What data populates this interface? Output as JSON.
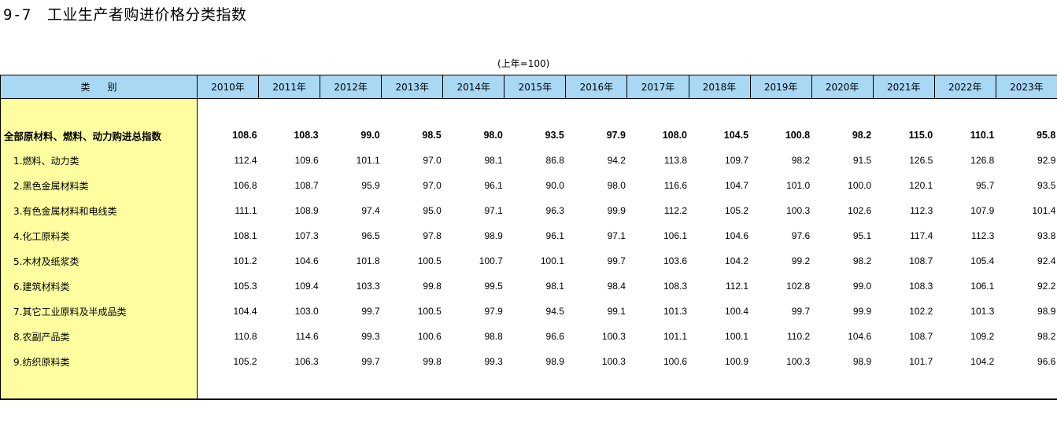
{
  "title": {
    "number": "9-7",
    "text": "工业生产者购进价格分类指数"
  },
  "unit_note": "(上年=100)",
  "table": {
    "category_header": "类别",
    "years": [
      "2010年",
      "2011年",
      "2012年",
      "2013年",
      "2014年",
      "2015年",
      "2016年",
      "2017年",
      "2018年",
      "2019年",
      "2020年",
      "2021年",
      "2022年",
      "2023年"
    ],
    "rows": [
      {
        "label": "全部原材料、燃料、动力购进总指数",
        "bold": true,
        "values": [
          "108.6",
          "108.3",
          "99.0",
          "98.5",
          "98.0",
          "93.5",
          "97.9",
          "108.0",
          "104.5",
          "100.8",
          "98.2",
          "115.0",
          "110.1",
          "95.8"
        ]
      },
      {
        "label": "1.燃料、动力类",
        "bold": false,
        "values": [
          "112.4",
          "109.6",
          "101.1",
          "97.0",
          "98.1",
          "86.8",
          "94.2",
          "113.8",
          "109.7",
          "98.2",
          "91.5",
          "126.5",
          "126.8",
          "92.9"
        ]
      },
      {
        "label": "2.黑色金属材料类",
        "bold": false,
        "values": [
          "106.8",
          "108.7",
          "95.9",
          "97.0",
          "96.1",
          "90.0",
          "98.0",
          "116.6",
          "104.7",
          "101.0",
          "100.0",
          "120.1",
          "95.7",
          "93.5"
        ]
      },
      {
        "label": "3.有色金属材料和电线类",
        "bold": false,
        "values": [
          "111.1",
          "108.9",
          "97.4",
          "95.0",
          "97.1",
          "96.3",
          "99.9",
          "112.2",
          "105.2",
          "100.3",
          "102.6",
          "112.3",
          "107.9",
          "101.4"
        ]
      },
      {
        "label": "4.化工原料类",
        "bold": false,
        "values": [
          "108.1",
          "107.3",
          "96.5",
          "97.8",
          "98.9",
          "96.1",
          "97.1",
          "106.1",
          "104.6",
          "97.6",
          "95.1",
          "117.4",
          "112.3",
          "93.8"
        ]
      },
      {
        "label": "5.木材及纸浆类",
        "bold": false,
        "values": [
          "101.2",
          "104.6",
          "101.8",
          "100.5",
          "100.7",
          "100.1",
          "99.7",
          "103.6",
          "104.2",
          "99.2",
          "98.2",
          "108.7",
          "105.4",
          "92.4"
        ]
      },
      {
        "label": "6.建筑材料类",
        "bold": false,
        "values": [
          "105.3",
          "109.4",
          "103.3",
          "99.8",
          "99.5",
          "98.1",
          "98.4",
          "108.3",
          "112.1",
          "102.8",
          "99.0",
          "108.3",
          "106.1",
          "92.2"
        ]
      },
      {
        "label": "7.其它工业原料及半成品类",
        "bold": false,
        "values": [
          "104.4",
          "103.0",
          "99.7",
          "100.5",
          "97.9",
          "94.5",
          "99.1",
          "101.3",
          "100.4",
          "99.7",
          "99.9",
          "102.2",
          "101.3",
          "98.9"
        ]
      },
      {
        "label": "8.农副产品类",
        "bold": false,
        "values": [
          "110.8",
          "114.6",
          "99.3",
          "100.6",
          "98.8",
          "96.6",
          "100.3",
          "101.1",
          "100.1",
          "110.2",
          "104.6",
          "108.7",
          "109.2",
          "98.2"
        ]
      },
      {
        "label": "9.纺织原料类",
        "bold": false,
        "values": [
          "105.2",
          "106.3",
          "99.7",
          "99.8",
          "99.3",
          "98.9",
          "100.3",
          "100.6",
          "100.9",
          "100.3",
          "98.9",
          "101.7",
          "104.2",
          "96.6"
        ]
      }
    ]
  },
  "colors": {
    "header_bg": "#a9d8f5",
    "category_bg": "#fefea0"
  }
}
